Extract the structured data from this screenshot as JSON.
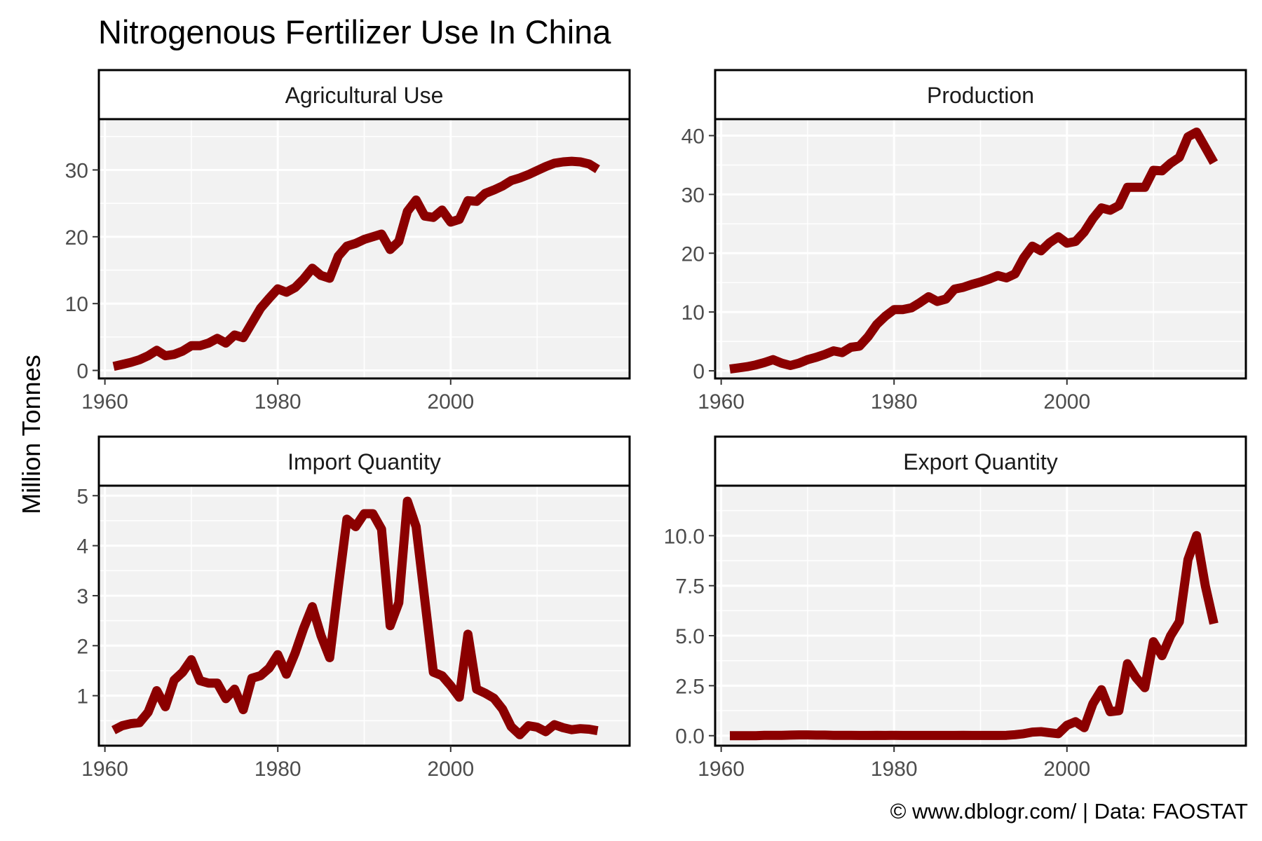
{
  "figure": {
    "title": "Nitrogenous Fertilizer Use In China",
    "ylabel": "Million Tonnes",
    "caption": "© www.dblogr.com/ | Data: FAOSTAT",
    "line_color": "#8B0000",
    "panel_background": "#F2F2F2",
    "grid_color": "#FFFFFF"
  },
  "chart_data": [
    {
      "type": "line",
      "title": "Agricultural Use",
      "x_ticks": [
        1960,
        1980,
        2000
      ],
      "y_ticks": [
        0,
        10,
        20,
        30
      ],
      "y_tick_labels": [
        "0",
        "10",
        "20",
        "30"
      ],
      "xlim": [
        1959.3,
        2020.7
      ],
      "ylim": [
        -1.2,
        37.6
      ],
      "series": [
        {
          "x": [
            1961,
            1962,
            1963,
            1964,
            1965,
            1966,
            1967,
            1968,
            1969,
            1970,
            1971,
            1972,
            1973,
            1974,
            1975,
            1976,
            1977,
            1978,
            1979,
            1980,
            1981,
            1982,
            1983,
            1984,
            1985,
            1986,
            1987,
            1988,
            1989,
            1990,
            1991,
            1992,
            1993,
            1994,
            1995,
            1996,
            1997,
            1998,
            1999,
            2000,
            2001,
            2002,
            2003,
            2004,
            2005,
            2006,
            2007,
            2008,
            2009,
            2010,
            2011,
            2012,
            2013,
            2014,
            2015,
            2016,
            2017
          ],
          "y": [
            0.6,
            0.9,
            1.2,
            1.6,
            2.2,
            3.0,
            2.2,
            2.4,
            2.9,
            3.7,
            3.7,
            4.1,
            4.8,
            4.1,
            5.3,
            4.9,
            7.1,
            9.3,
            10.8,
            12.2,
            11.7,
            12.4,
            13.7,
            15.3,
            14.2,
            13.8,
            17.1,
            18.6,
            19.0,
            19.6,
            20.0,
            20.4,
            18.1,
            19.3,
            23.8,
            25.5,
            23.1,
            22.9,
            24.0,
            22.2,
            22.6,
            25.4,
            25.3,
            26.5,
            27.0,
            27.6,
            28.4,
            28.8,
            29.3,
            29.9,
            30.5,
            31.0,
            31.2,
            31.3,
            31.2,
            30.9,
            30.1
          ]
        }
      ]
    },
    {
      "type": "line",
      "title": "Production",
      "x_ticks": [
        1960,
        1980,
        2000
      ],
      "y_ticks": [
        0,
        10,
        20,
        30,
        40
      ],
      "y_tick_labels": [
        "0",
        "10",
        "20",
        "30",
        "40"
      ],
      "xlim": [
        1959.3,
        2020.7
      ],
      "ylim": [
        -1.3,
        42.8
      ],
      "series": [
        {
          "x": [
            1961,
            1962,
            1963,
            1964,
            1965,
            1966,
            1967,
            1968,
            1969,
            1970,
            1971,
            1972,
            1973,
            1974,
            1975,
            1976,
            1977,
            1978,
            1979,
            1980,
            1981,
            1982,
            1983,
            1984,
            1985,
            1986,
            1987,
            1988,
            1989,
            1990,
            1991,
            1992,
            1993,
            1994,
            1995,
            1996,
            1997,
            1998,
            1999,
            2000,
            2001,
            2002,
            2003,
            2004,
            2005,
            2006,
            2007,
            2008,
            2009,
            2010,
            2011,
            2012,
            2013,
            2014,
            2015,
            2016,
            2017
          ],
          "y": [
            0.3,
            0.5,
            0.7,
            1.0,
            1.4,
            1.9,
            1.3,
            0.9,
            1.3,
            1.9,
            2.3,
            2.8,
            3.4,
            3.1,
            4.0,
            4.2,
            5.8,
            7.9,
            9.3,
            10.4,
            10.4,
            10.7,
            11.6,
            12.6,
            11.8,
            12.2,
            13.9,
            14.2,
            14.7,
            15.1,
            15.6,
            16.2,
            15.8,
            16.5,
            19.2,
            21.2,
            20.4,
            21.8,
            22.8,
            21.7,
            22.0,
            23.6,
            25.9,
            27.7,
            27.3,
            28.1,
            31.2,
            31.2,
            31.2,
            34.1,
            34.0,
            35.3,
            36.3,
            39.8,
            40.6,
            38.0,
            35.4
          ]
        }
      ]
    },
    {
      "type": "line",
      "title": "Import Quantity",
      "x_ticks": [
        1960,
        1980,
        2000
      ],
      "y_ticks": [
        1,
        2,
        3,
        4,
        5
      ],
      "y_tick_labels": [
        "1",
        "2",
        "3",
        "4",
        "5"
      ],
      "xlim": [
        1959.3,
        2020.7
      ],
      "ylim": [
        0.0,
        5.2
      ],
      "series": [
        {
          "x": [
            1961,
            1962,
            1963,
            1964,
            1965,
            1966,
            1967,
            1968,
            1969,
            1970,
            1971,
            1972,
            1973,
            1974,
            1975,
            1976,
            1977,
            1978,
            1979,
            1980,
            1981,
            1982,
            1983,
            1984,
            1985,
            1986,
            1987,
            1988,
            1989,
            1990,
            1991,
            1992,
            1993,
            1994,
            1995,
            1996,
            1997,
            1998,
            1999,
            2000,
            2001,
            2002,
            2003,
            2004,
            2005,
            2006,
            2007,
            2008,
            2009,
            2010,
            2011,
            2012,
            2013,
            2014,
            2015,
            2016,
            2017
          ],
          "y": [
            0.31,
            0.4,
            0.44,
            0.46,
            0.67,
            1.1,
            0.78,
            1.31,
            1.47,
            1.72,
            1.3,
            1.25,
            1.25,
            0.94,
            1.13,
            0.72,
            1.35,
            1.4,
            1.55,
            1.82,
            1.43,
            1.85,
            2.35,
            2.78,
            2.2,
            1.76,
            3.17,
            4.53,
            4.38,
            4.64,
            4.64,
            4.33,
            2.4,
            2.86,
            4.89,
            4.38,
            2.93,
            1.47,
            1.4,
            1.2,
            0.97,
            2.23,
            1.13,
            1.05,
            0.95,
            0.73,
            0.38,
            0.22,
            0.4,
            0.37,
            0.28,
            0.42,
            0.36,
            0.32,
            0.34,
            0.33,
            0.3
          ]
        }
      ]
    },
    {
      "type": "line",
      "title": "Export Quantity",
      "x_ticks": [
        1960,
        1980,
        2000
      ],
      "y_ticks": [
        0,
        2.5,
        5,
        7.5,
        10
      ],
      "y_tick_labels": [
        "0.0",
        "2.5",
        "5.0",
        "7.5",
        "10.0"
      ],
      "xlim": [
        1959.3,
        2020.7
      ],
      "ylim": [
        -0.5,
        12.5
      ],
      "series": [
        {
          "x": [
            1961,
            1962,
            1963,
            1964,
            1965,
            1966,
            1967,
            1968,
            1969,
            1970,
            1971,
            1972,
            1973,
            1974,
            1975,
            1976,
            1977,
            1978,
            1979,
            1980,
            1981,
            1982,
            1983,
            1984,
            1985,
            1986,
            1987,
            1988,
            1989,
            1990,
            1991,
            1992,
            1993,
            1994,
            1995,
            1996,
            1997,
            1998,
            1999,
            2000,
            2001,
            2002,
            2003,
            2004,
            2005,
            2006,
            2007,
            2008,
            2009,
            2010,
            2011,
            2012,
            2013,
            2014,
            2015,
            2016,
            2017
          ],
          "y": [
            0.0,
            0.0,
            0.0,
            0.0,
            0.02,
            0.02,
            0.02,
            0.03,
            0.04,
            0.04,
            0.03,
            0.03,
            0.02,
            0.02,
            0.02,
            0.01,
            0.01,
            0.02,
            0.01,
            0.02,
            0.01,
            0.01,
            0.01,
            0.01,
            0.01,
            0.01,
            0.01,
            0.02,
            0.01,
            0.01,
            0.01,
            0.01,
            0.02,
            0.05,
            0.1,
            0.18,
            0.2,
            0.15,
            0.1,
            0.52,
            0.7,
            0.4,
            1.6,
            2.3,
            1.2,
            1.25,
            3.6,
            2.9,
            2.4,
            4.7,
            4.0,
            5.0,
            5.7,
            8.8,
            10.0,
            7.5,
            5.6
          ]
        }
      ]
    }
  ]
}
